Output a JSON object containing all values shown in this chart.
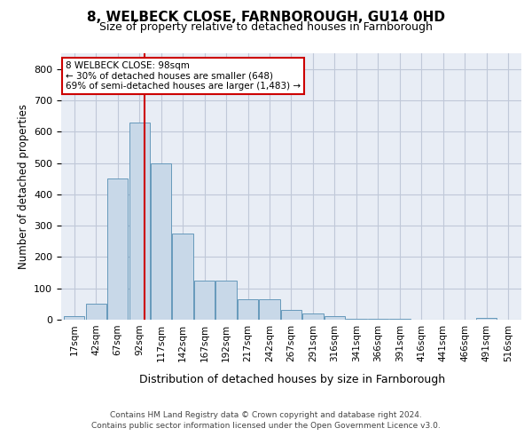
{
  "title": "8, WELBECK CLOSE, FARNBOROUGH, GU14 0HD",
  "subtitle": "Size of property relative to detached houses in Farnborough",
  "xlabel": "Distribution of detached houses by size in Farnborough",
  "ylabel": "Number of detached properties",
  "footer_line1": "Contains HM Land Registry data © Crown copyright and database right 2024.",
  "footer_line2": "Contains public sector information licensed under the Open Government Licence v3.0.",
  "bar_color": "#c8d8e8",
  "bar_edge_color": "#6699bb",
  "grid_color": "#c0c8d8",
  "background_color": "#e8edf5",
  "annotation_box_color": "#cc0000",
  "property_line_color": "#cc0000",
  "property_value": 98,
  "annotation_text": "8 WELBECK CLOSE: 98sqm\n← 30% of detached houses are smaller (648)\n69% of semi-detached houses are larger (1,483) →",
  "bin_labels": [
    "17sqm",
    "42sqm",
    "67sqm",
    "92sqm",
    "117sqm",
    "142sqm",
    "167sqm",
    "192sqm",
    "217sqm",
    "242sqm",
    "267sqm",
    "291sqm",
    "316sqm",
    "341sqm",
    "366sqm",
    "391sqm",
    "416sqm",
    "441sqm",
    "466sqm",
    "491sqm",
    "516sqm"
  ],
  "bar_heights": [
    10,
    50,
    450,
    630,
    500,
    275,
    125,
    125,
    65,
    65,
    30,
    20,
    10,
    3,
    3,
    3,
    0,
    0,
    0,
    5,
    0
  ],
  "ylim": [
    0,
    850
  ],
  "yticks": [
    0,
    100,
    200,
    300,
    400,
    500,
    600,
    700,
    800
  ]
}
